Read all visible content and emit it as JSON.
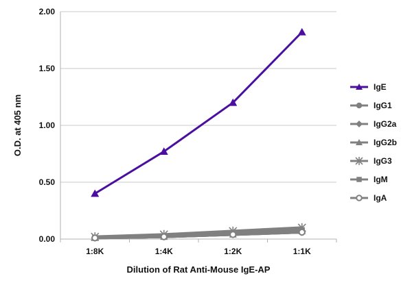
{
  "chart_data": {
    "type": "line",
    "xlabel": "Dilution of Rat Anti-Mouse IgE-AP",
    "ylabel": "O.D. at 405 nm",
    "categories": [
      "1:8K",
      "1:4K",
      "1:2K",
      "1:1K"
    ],
    "ylim": [
      0,
      2
    ],
    "yticks": [
      "0.00",
      "0.50",
      "1.00",
      "1.50",
      "2.00"
    ],
    "grid": "horizontal",
    "legend_position": "right",
    "series": [
      {
        "name": "IgE",
        "values": [
          0.4,
          0.77,
          1.2,
          1.82
        ],
        "color": "#4b0fa0",
        "marker": "triangle"
      },
      {
        "name": "IgG1",
        "values": [
          0.01,
          0.02,
          0.04,
          0.06
        ],
        "color": "#808080",
        "marker": "circle"
      },
      {
        "name": "IgG2a",
        "values": [
          0.01,
          0.02,
          0.04,
          0.06
        ],
        "color": "#808080",
        "marker": "diamond"
      },
      {
        "name": "IgG2b",
        "values": [
          0.01,
          0.02,
          0.04,
          0.07
        ],
        "color": "#808080",
        "marker": "triangle"
      },
      {
        "name": "IgG3",
        "values": [
          0.02,
          0.04,
          0.07,
          0.1
        ],
        "color": "#808080",
        "marker": "star"
      },
      {
        "name": "IgM",
        "values": [
          0.01,
          0.02,
          0.05,
          0.08
        ],
        "color": "#808080",
        "marker": "square"
      },
      {
        "name": "IgA",
        "values": [
          0.01,
          0.02,
          0.04,
          0.06
        ],
        "color": "#808080",
        "marker": "open-circle"
      }
    ]
  }
}
